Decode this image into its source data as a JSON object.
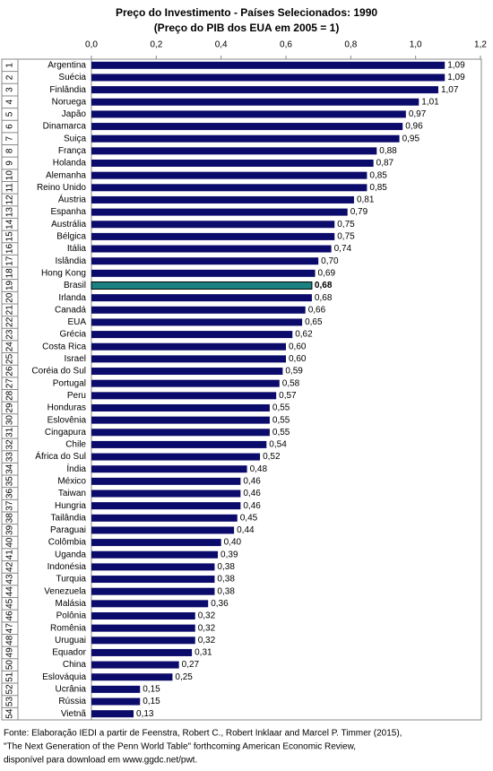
{
  "chart_data": {
    "type": "hbar",
    "title": "Preço do Investimento - Países Selecionados: 1990",
    "subtitle": "(Preço do PIB dos EUA em 2005 = 1)",
    "categories": [
      "Argentina",
      "Suécia",
      "Finlândia",
      "Noruega",
      "Japão",
      "Dinamarca",
      "Suiça",
      "França",
      "Holanda",
      "Alemanha",
      "Reino Unido",
      "Áustria",
      "Espanha",
      "Austrália",
      "Bélgica",
      "Itália",
      "Islândia",
      "Hong Kong",
      "Brasil",
      "Irlanda",
      "Canadá",
      "EUA",
      "Grécia",
      "Costa Rica",
      "Israel",
      "Coréia do Sul",
      "Portugal",
      "Peru",
      "Honduras",
      "Eslovênia",
      "Cingapura",
      "Chile",
      "África do Sul",
      "Índia",
      "México",
      "Taiwan",
      "Hungria",
      "Tailândia",
      "Paraguai",
      "Colômbia",
      "Uganda",
      "Indonésia",
      "Turquia",
      "Venezuela",
      "Malásia",
      "Polônia",
      "Romênia",
      "Uruguai",
      "Equador",
      "China",
      "Eslováquia",
      "Ucrânia",
      "Rússia",
      "Vietnã"
    ],
    "ranks": [
      1,
      2,
      3,
      4,
      5,
      6,
      7,
      8,
      9,
      10,
      11,
      12,
      13,
      14,
      15,
      16,
      17,
      18,
      19,
      20,
      21,
      22,
      23,
      24,
      25,
      26,
      27,
      28,
      29,
      30,
      31,
      32,
      33,
      34,
      35,
      36,
      37,
      38,
      39,
      40,
      41,
      42,
      43,
      44,
      45,
      46,
      47,
      48,
      49,
      50,
      51,
      52,
      53,
      54
    ],
    "values": [
      1.09,
      1.09,
      1.07,
      1.01,
      0.97,
      0.96,
      0.95,
      0.88,
      0.87,
      0.85,
      0.85,
      0.81,
      0.79,
      0.75,
      0.75,
      0.74,
      0.7,
      0.69,
      0.68,
      0.68,
      0.66,
      0.65,
      0.62,
      0.6,
      0.6,
      0.59,
      0.58,
      0.57,
      0.55,
      0.55,
      0.55,
      0.54,
      0.52,
      0.48,
      0.46,
      0.46,
      0.46,
      0.45,
      0.44,
      0.4,
      0.39,
      0.38,
      0.38,
      0.38,
      0.36,
      0.32,
      0.32,
      0.32,
      0.31,
      0.27,
      0.25,
      0.15,
      0.15,
      0.13
    ],
    "value_labels": [
      "1,09",
      "1,09",
      "1,07",
      "1,01",
      "0,97",
      "0,96",
      "0,95",
      "0,88",
      "0,87",
      "0,85",
      "0,85",
      "0,81",
      "0,79",
      "0,75",
      "0,75",
      "0,74",
      "0,70",
      "0,69",
      "0,68",
      "0,68",
      "0,66",
      "0,65",
      "0,62",
      "0,60",
      "0,60",
      "0,59",
      "0,58",
      "0,57",
      "0,55",
      "0,55",
      "0,55",
      "0,54",
      "0,52",
      "0,48",
      "0,46",
      "0,46",
      "0,46",
      "0,45",
      "0,44",
      "0,40",
      "0,39",
      "0,38",
      "0,38",
      "0,38",
      "0,36",
      "0,32",
      "0,32",
      "0,32",
      "0,31",
      "0,27",
      "0,25",
      "0,15",
      "0,15",
      "0,13"
    ],
    "color": "#0b0b6b",
    "highlight_index": 18,
    "highlight_color": "#1b8080",
    "xlim": [
      0,
      1.2
    ],
    "xticks": [
      {
        "value": 0,
        "label": "0,0"
      },
      {
        "value": 0.2,
        "label": "0,2"
      },
      {
        "value": 0.4,
        "label": "0,4"
      },
      {
        "value": 0.6,
        "label": "0,6"
      },
      {
        "value": 0.8,
        "label": "0,8"
      },
      {
        "value": 1,
        "label": "1,0"
      },
      {
        "value": 1.2,
        "label": "1,2"
      }
    ],
    "footer": [
      "Fonte: Elaboração IEDI a partir de Feenstra, Robert C., Robert Inklaar and Marcel P. Timmer (2015),",
      "\"The Next Generation of the Penn World Table\" forthcoming American Economic Review,",
      "disponível para download em www.ggdc.net/pwt."
    ]
  }
}
